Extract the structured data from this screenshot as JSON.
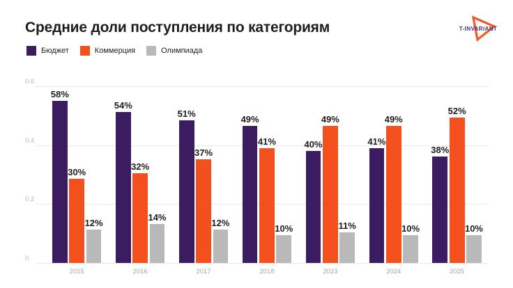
{
  "header": {
    "title": "Средние доли поступления по категориям",
    "logo_text": "T-INVARIANT"
  },
  "colors": {
    "budget": "#3c1c60",
    "commerce": "#f4501e",
    "olympiad": "#b9b9b9",
    "title_text": "#1d1d1b",
    "value_label_text": "#1d1d1b",
    "y_axis_text": "#b8b8b8",
    "x_axis_text": "#a3a3a3",
    "gridline": "#e8e8e8",
    "logo_orange": "#f15a28",
    "logo_purple": "#453082",
    "background": "#ffffff"
  },
  "chart_data": {
    "type": "bar",
    "title": "Средние доли поступления по категориям",
    "categories": [
      "2015",
      "2016",
      "2017",
      "2018",
      "2023",
      "2024",
      "2025"
    ],
    "series": [
      {
        "key": "budget",
        "name": "Бюджет",
        "color": "#3c1c60",
        "values": [
          58,
          54,
          51,
          49,
          40,
          41,
          38
        ]
      },
      {
        "key": "commerce",
        "name": "Коммерция",
        "color": "#f4501e",
        "values": [
          30,
          32,
          37,
          41,
          49,
          49,
          52
        ]
      },
      {
        "key": "olympiad",
        "name": "Олимпиада",
        "color": "#b9b9b9",
        "values": [
          12,
          14,
          12,
          10,
          11,
          10,
          10
        ]
      }
    ],
    "value_suffix": "%",
    "xlabel": "",
    "ylabel": "",
    "yticks": [
      "0",
      "0.2",
      "0.4",
      "0.6"
    ],
    "ylim": [
      0,
      0.6
    ],
    "grid": true,
    "legend_position": "top-left"
  }
}
